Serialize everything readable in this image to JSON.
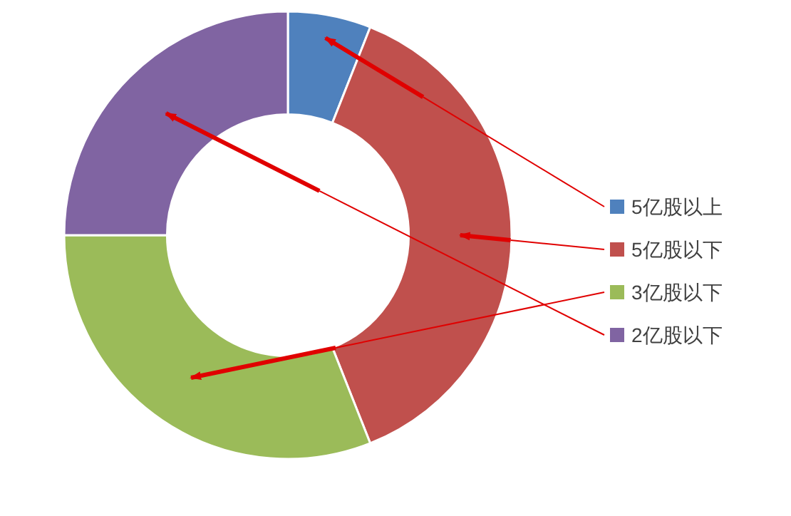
{
  "chart_data": {
    "type": "donut",
    "categories": [
      "5亿股以上",
      "5亿股以下",
      "3亿股以下",
      "2亿股以下"
    ],
    "values": [
      6,
      38,
      31,
      25
    ],
    "colors": [
      "#4f81bd",
      "#c0504d",
      "#9bbb59",
      "#8064a2"
    ],
    "legend": "right"
  }
}
